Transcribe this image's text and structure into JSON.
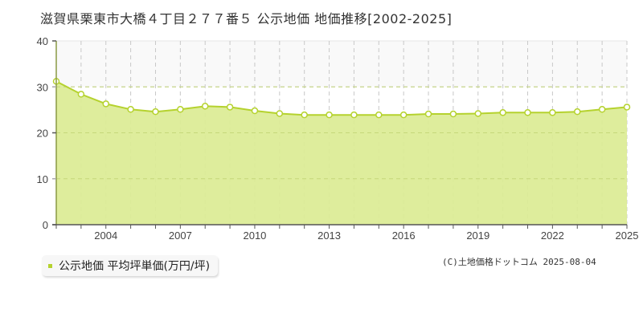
{
  "title": "滋賀県栗東市大橋４丁目２７７番５ 公示地価 地価推移[2002-2025]",
  "legend": {
    "label": "公示地価 平均坪単価(万円/坪)",
    "color": "#b5d22e"
  },
  "footer": "(C)土地価格ドットコム 2025-08-04",
  "colors": {
    "area_fill": "#dbeb94",
    "line": "#b5d22e",
    "upper_band": "#f9f9f9",
    "grid": "#c8c8c8",
    "axis": "#555555"
  },
  "chart_data": {
    "type": "area",
    "title": "滋賀県栗東市大橋４丁目２７７番５ 公示地価 地価推移[2002-2025]",
    "xlabel": "",
    "ylabel": "",
    "x": [
      2002,
      2003,
      2004,
      2005,
      2006,
      2007,
      2008,
      2009,
      2010,
      2011,
      2012,
      2013,
      2014,
      2015,
      2016,
      2017,
      2018,
      2019,
      2020,
      2021,
      2022,
      2023,
      2024,
      2025
    ],
    "series": [
      {
        "name": "公示地価 平均坪単価(万円/坪)",
        "values": [
          31.2,
          28.4,
          26.3,
          25.1,
          24.6,
          25.1,
          25.8,
          25.6,
          24.8,
          24.2,
          23.9,
          23.9,
          23.9,
          23.9,
          23.9,
          24.1,
          24.1,
          24.2,
          24.4,
          24.4,
          24.4,
          24.6,
          25.1,
          25.6
        ]
      }
    ],
    "ylim": [
      0,
      40
    ],
    "yticks": [
      0,
      10,
      20,
      30,
      40
    ],
    "xticks": [
      2004,
      2007,
      2010,
      2013,
      2016,
      2019,
      2022,
      2025
    ],
    "xlim": [
      2002,
      2025
    ],
    "grid": true,
    "legend_position": "bottom-left"
  }
}
